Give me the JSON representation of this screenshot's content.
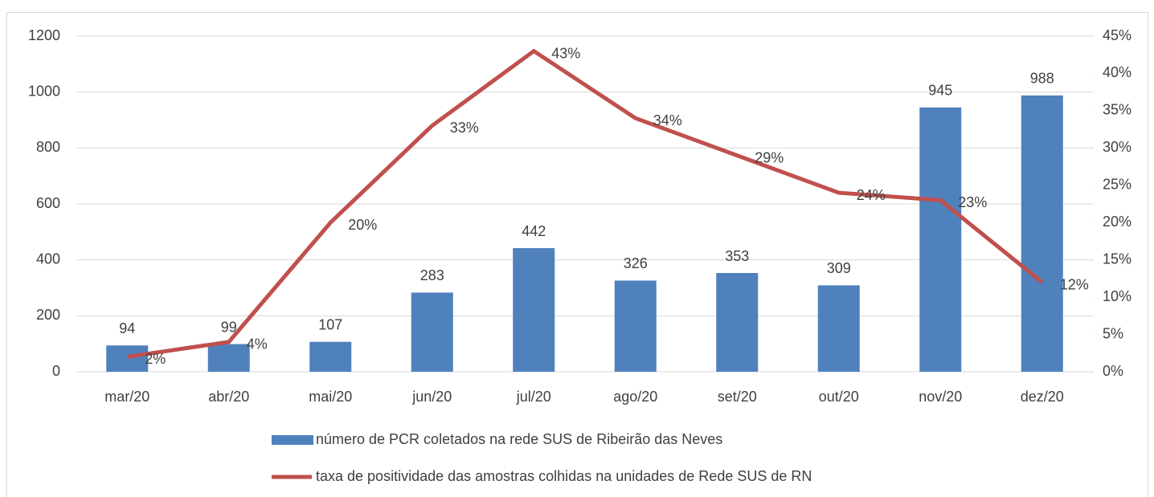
{
  "chart_data": {
    "type": "bar",
    "categories": [
      "mar/20",
      "abr/20",
      "mai/20",
      "jun/20",
      "jul/20",
      "ago/20",
      "set/20",
      "out/20",
      "nov/20",
      "dez/20"
    ],
    "series": [
      {
        "name": "número de PCR coletados na rede SUS de Ribeirão das Neves",
        "type": "bar",
        "color": "#4f81bd",
        "values": [
          94,
          99,
          107,
          283,
          442,
          326,
          353,
          309,
          945,
          988
        ]
      },
      {
        "name": "taxa de positividade das amostras colhidas na unidades de Rede SUS de RN",
        "type": "line",
        "axis": "y2",
        "color": "#c0504d",
        "values": [
          2,
          4,
          20,
          33,
          43,
          34,
          29,
          24,
          23,
          12
        ],
        "value_labels": [
          "2%",
          "4%",
          "20%",
          "33%",
          "43%",
          "34%",
          "29%",
          "24%",
          "23%",
          "12%"
        ]
      }
    ],
    "ylim": [
      0,
      1200
    ],
    "yticks": [
      0,
      200,
      400,
      600,
      800,
      1000,
      1200
    ],
    "y2lim": [
      0,
      45
    ],
    "y2ticks": [
      {
        "value": 0,
        "label": "0%"
      },
      {
        "value": 5,
        "label": "5%"
      },
      {
        "value": 10,
        "label": "10%"
      },
      {
        "value": 15,
        "label": "15%"
      },
      {
        "value": 20,
        "label": "20%"
      },
      {
        "value": 25,
        "label": "25%"
      },
      {
        "value": 30,
        "label": "30%"
      },
      {
        "value": 35,
        "label": "35%"
      },
      {
        "value": 40,
        "label": "40%"
      },
      {
        "value": 45,
        "label": "45%"
      }
    ],
    "grid": true,
    "legend": "bottom"
  }
}
